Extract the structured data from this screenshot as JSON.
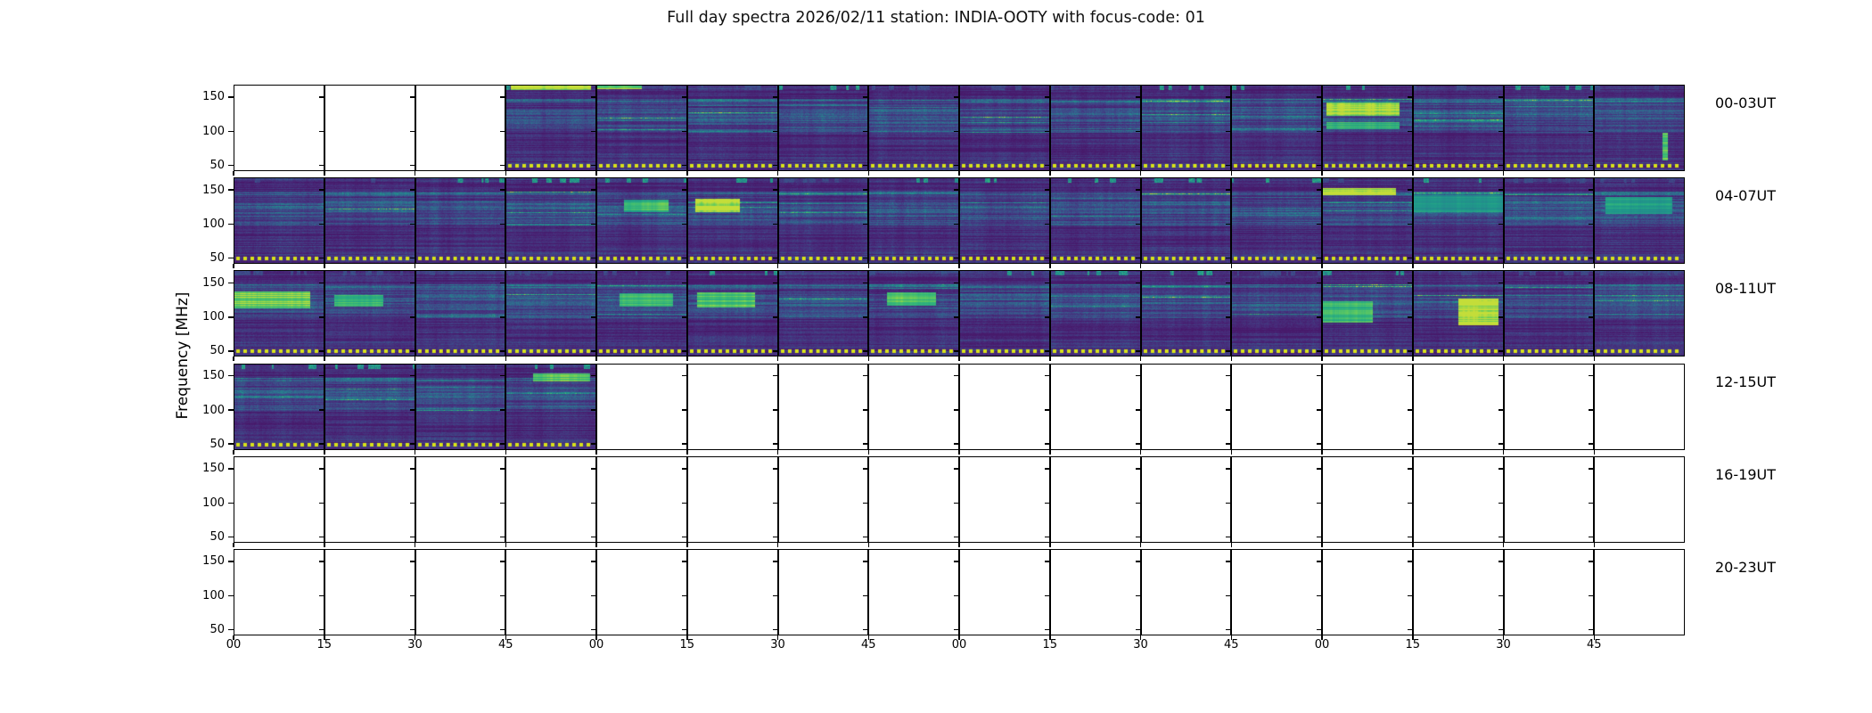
{
  "title": "Full day spectra 2026/02/11 station: INDIA-OOTY with focus-code: 01",
  "chart_data": {
    "type": "heatmap",
    "title": "Full day spectra 2026/02/11 station: INDIA-OOTY with focus-code: 01",
    "ylabel": "Frequency [MHz]",
    "xlabel": "",
    "colormap": "viridis",
    "legend": "none",
    "grid": false,
    "y_ticks": [
      "150",
      "100",
      "50"
    ],
    "y_range_mhz": [
      44,
      168
    ],
    "x_tick_labels": [
      "00",
      "15",
      "30",
      "45",
      "00",
      "15",
      "30",
      "45",
      "00",
      "15",
      "30",
      "45",
      "00",
      "15",
      "30",
      "45"
    ],
    "minutes_per_segment": 15,
    "segments_per_row": 16,
    "rows": [
      {
        "label": "00-03UT",
        "filled_segments": [
          3,
          4,
          5,
          6,
          7,
          8,
          9,
          10,
          11,
          12,
          13,
          14,
          15
        ]
      },
      {
        "label": "04-07UT",
        "filled_segments": [
          0,
          1,
          2,
          3,
          4,
          5,
          6,
          7,
          8,
          9,
          10,
          11,
          12,
          13,
          14,
          15
        ]
      },
      {
        "label": "08-11UT",
        "filled_segments": [
          0,
          1,
          2,
          3,
          4,
          5,
          6,
          7,
          8,
          9,
          10,
          11,
          12,
          13,
          14,
          15
        ]
      },
      {
        "label": "12-15UT",
        "filled_segments": [
          0,
          1,
          2,
          3
        ]
      },
      {
        "label": "16-19UT",
        "filled_segments": []
      },
      {
        "label": "20-23UT",
        "filled_segments": []
      }
    ],
    "features": [
      {
        "row": 0,
        "seg": 3,
        "x": 0.05,
        "y": 0.0,
        "w": 0.9,
        "h": 0.05,
        "t": 0.78,
        "note": "bright dashes along top"
      },
      {
        "row": 0,
        "seg": 4,
        "x": 0.0,
        "y": 0.0,
        "w": 0.5,
        "h": 0.04,
        "t": 0.7
      },
      {
        "row": 0,
        "seg": 12,
        "x": 0.04,
        "y": 0.2,
        "w": 0.82,
        "h": 0.15,
        "t": 0.8,
        "note": "wide bright cyan band"
      },
      {
        "row": 0,
        "seg": 12,
        "x": 0.04,
        "y": 0.43,
        "w": 0.82,
        "h": 0.08,
        "t": 0.58
      },
      {
        "row": 0,
        "seg": 15,
        "x": 0.76,
        "y": 0.55,
        "w": 0.06,
        "h": 0.33,
        "t": 0.66
      },
      {
        "row": 1,
        "seg": 4,
        "x": 0.3,
        "y": 0.25,
        "w": 0.5,
        "h": 0.14,
        "t": 0.6
      },
      {
        "row": 1,
        "seg": 5,
        "x": 0.08,
        "y": 0.24,
        "w": 0.5,
        "h": 0.16,
        "t": 0.82,
        "note": "bright green blob"
      },
      {
        "row": 1,
        "seg": 12,
        "x": 0.0,
        "y": 0.11,
        "w": 0.82,
        "h": 0.08,
        "t": 0.78,
        "note": "bright band near top"
      },
      {
        "row": 1,
        "seg": 13,
        "x": 0.0,
        "y": 0.2,
        "w": 1.0,
        "h": 0.2,
        "t": 0.48
      },
      {
        "row": 1,
        "seg": 15,
        "x": 0.12,
        "y": 0.22,
        "w": 0.75,
        "h": 0.2,
        "t": 0.5
      },
      {
        "row": 2,
        "seg": 0,
        "x": 0.0,
        "y": 0.24,
        "w": 0.85,
        "h": 0.2,
        "t": 0.7
      },
      {
        "row": 2,
        "seg": 1,
        "x": 0.1,
        "y": 0.28,
        "w": 0.55,
        "h": 0.14,
        "t": 0.58
      },
      {
        "row": 2,
        "seg": 4,
        "x": 0.25,
        "y": 0.26,
        "w": 0.6,
        "h": 0.16,
        "t": 0.6
      },
      {
        "row": 2,
        "seg": 5,
        "x": 0.1,
        "y": 0.25,
        "w": 0.65,
        "h": 0.18,
        "t": 0.64
      },
      {
        "row": 2,
        "seg": 7,
        "x": 0.2,
        "y": 0.25,
        "w": 0.55,
        "h": 0.16,
        "t": 0.62
      },
      {
        "row": 2,
        "seg": 12,
        "x": 0.0,
        "y": 0.35,
        "w": 0.55,
        "h": 0.26,
        "t": 0.6
      },
      {
        "row": 2,
        "seg": 13,
        "x": 0.5,
        "y": 0.32,
        "w": 0.45,
        "h": 0.32,
        "t": 0.8,
        "note": "bright cyan block"
      },
      {
        "row": 3,
        "seg": 3,
        "x": 0.3,
        "y": 0.1,
        "w": 0.64,
        "h": 0.09,
        "t": 0.66
      }
    ],
    "colors": {
      "spectrogram_base": "#38205f",
      "band_teal": "#26828e",
      "bright_green": "#35b779",
      "dot_yellow": "#d8e219",
      "no_data": "#ffffff",
      "spine": "#000000"
    }
  }
}
